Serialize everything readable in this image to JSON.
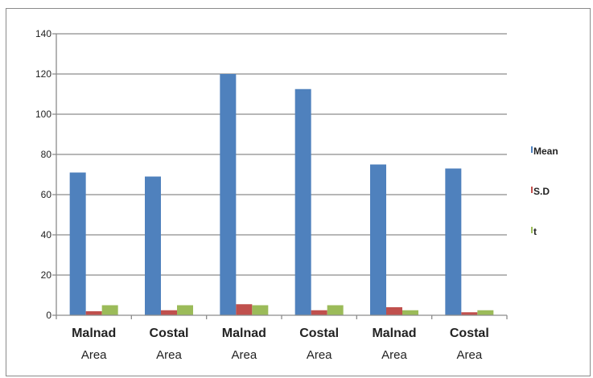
{
  "chart_data": {
    "type": "bar",
    "categories": [
      [
        "Malnad",
        "Area"
      ],
      [
        "Costal",
        "Area"
      ],
      [
        "Malnad",
        "Area"
      ],
      [
        "Costal",
        "Area"
      ],
      [
        "Malnad",
        "Area"
      ],
      [
        "Costal",
        "Area"
      ]
    ],
    "series": [
      {
        "name": "Mean",
        "color": "#4f81bd",
        "values": [
          71,
          69,
          120,
          112.5,
          75,
          73
        ]
      },
      {
        "name": "S.D",
        "color": "#c0504d",
        "values": [
          2,
          2.5,
          5.5,
          2.5,
          4,
          1.5
        ]
      },
      {
        "name": "t",
        "color": "#9bbb59",
        "values": [
          5,
          5,
          5,
          5,
          2.5,
          2.5
        ]
      }
    ],
    "yticks": [
      0,
      20,
      40,
      60,
      80,
      100,
      120,
      140
    ],
    "ylim": [
      0,
      140
    ],
    "grid": true,
    "legend_position": "right",
    "title": "",
    "xlabel": "",
    "ylabel": ""
  }
}
